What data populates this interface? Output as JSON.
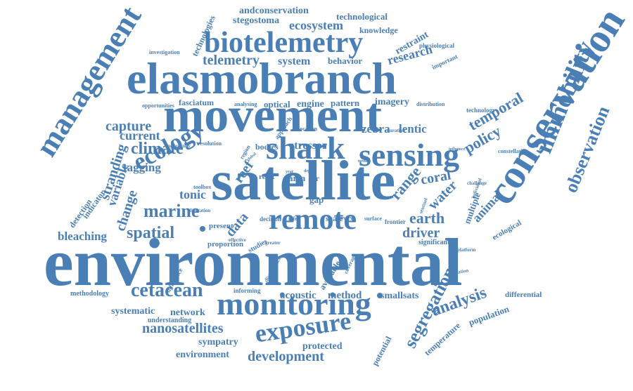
{
  "colors": {
    "word": "#4a7fb5",
    "background": "#ffffff"
  },
  "words": [
    "environmental",
    "satellite",
    "movement",
    "elasmobranch",
    "conservation",
    "management",
    "monitoring",
    "remote",
    "biotelemetry",
    "sensing",
    "shark",
    "immobility",
    "exposure",
    "ecology",
    "observation",
    "marine",
    "cetacean",
    "climate",
    "spatial",
    "segregation",
    "analysis",
    "development",
    "temporal",
    "nanosatellites",
    "telemetry",
    "bleaching",
    "earth",
    "coral",
    "animal",
    "data",
    "current",
    "change",
    "stranding",
    "variable",
    "policy",
    "tagging",
    "capture",
    "range",
    "zebra",
    "lentic",
    "water",
    "driver",
    "reef",
    "tonic",
    "fasciatum",
    "stegostoma",
    "ecosystem",
    "andconservation",
    "technological",
    "knowledge",
    "research",
    "restraint",
    "system",
    "behavior",
    "optical",
    "engine",
    "pattern",
    "imagery",
    "stressor",
    "bodies",
    "area",
    "str",
    "scale",
    "gap",
    "method",
    "smallsats",
    "acoustic",
    "systematic",
    "network",
    "sympatry",
    "environment",
    "protected",
    "understanding",
    "population",
    "temperature",
    "differential",
    "methodology",
    "potential",
    "available",
    "ecological",
    "multiple",
    "significant",
    "frontier",
    "present",
    "proportion",
    "studies",
    "detection",
    "indicator",
    "technologies",
    "investigation",
    "physiological",
    "important",
    "opportunities",
    "analysing",
    "distribution",
    "technology",
    "challenge",
    "constellation",
    "resolution",
    "opportunity",
    "region",
    "approach",
    "location",
    "duration",
    "reset",
    "infer",
    "review",
    "surface",
    "decision",
    "effective",
    "greater",
    "informing",
    "coverage",
    "application",
    "platform",
    "difference",
    "disturbance",
    "sentinel",
    "limitation",
    "toolbox",
    "influence",
    "global",
    "trend",
    "individual",
    "year",
    "depth"
  ]
}
